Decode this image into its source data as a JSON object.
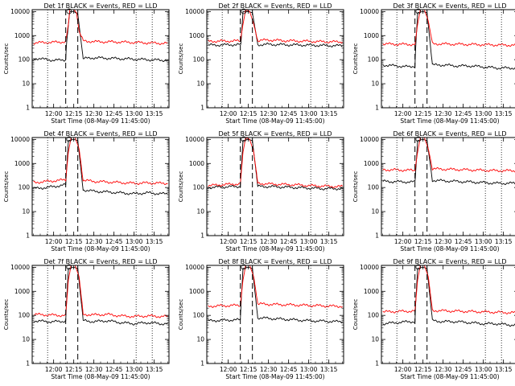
{
  "x_ticks": [
    "12:00",
    "12:15",
    "12:30",
    "12:45",
    "13:00",
    "13:15"
  ],
  "x_tick_minutes": [
    15,
    30,
    45,
    60,
    75,
    90
  ],
  "y_ticks": [
    "1",
    "10",
    "100",
    "1000",
    "10000"
  ],
  "y_tick_values": [
    1,
    10,
    100,
    1000,
    10000
  ],
  "ylabel": "Counts/sec",
  "xlabel": "Start Time (08-May-09 11:45:00)",
  "colors": {
    "events": "#000000",
    "lld": "#ff0000",
    "axes": "#000000"
  },
  "chart_data": [
    {
      "type": "line",
      "title": "Det 1f BLACK = Events, RED = LLD",
      "x_unit": "minutes after 11:45:00",
      "xlim": [
        -1,
        101
      ],
      "ylim": [
        1,
        12000
      ],
      "yscale": "log",
      "vlines_dotted": [
        10.5,
        76.5,
        88.5
      ],
      "vlines_dashed": [
        24,
        33
      ],
      "series": [
        {
          "name": "BLACK = Events",
          "x": [
            0,
            5,
            10,
            15,
            20,
            24,
            24.5,
            27,
            30,
            33,
            37,
            45,
            55,
            65,
            75,
            85,
            95,
            100
          ],
          "values": [
            115,
            110,
            100,
            95,
            95,
            100,
            400,
            10000,
            10000,
            8000,
            110,
            120,
            115,
            110,
            105,
            100,
            95,
            95
          ]
        },
        {
          "name": "RED = LLD",
          "x": [
            0,
            10,
            20,
            24,
            26,
            27,
            30,
            32,
            34,
            37,
            45,
            55,
            65,
            75,
            85,
            95,
            100
          ],
          "values": [
            500,
            520,
            540,
            560,
            3000,
            12000,
            12000,
            9000,
            1500,
            600,
            560,
            550,
            540,
            520,
            500,
            480,
            480
          ]
        }
      ]
    },
    {
      "type": "line",
      "title": "Det 2f BLACK = Events, RED = LLD",
      "x_unit": "minutes after 11:45:00",
      "xlim": [
        -1,
        101
      ],
      "ylim": [
        1,
        12000
      ],
      "yscale": "log",
      "vlines_dotted": [
        10.5,
        76.5,
        88.5
      ],
      "vlines_dashed": [
        24,
        33
      ],
      "series": [
        {
          "name": "BLACK = Events",
          "x": [
            0,
            10,
            20,
            24,
            24.5,
            26,
            30,
            33,
            37,
            45,
            55,
            65,
            75,
            85,
            95,
            100
          ],
          "values": [
            400,
            410,
            420,
            420,
            500,
            10000,
            10000,
            9000,
            420,
            430,
            420,
            410,
            400,
            390,
            380,
            380
          ]
        },
        {
          "name": "RED = LLD",
          "x": [
            0,
            10,
            20,
            24,
            26,
            28,
            31,
            34,
            37,
            45,
            55,
            65,
            75,
            85,
            95,
            100
          ],
          "values": [
            580,
            590,
            600,
            600,
            3000,
            12000,
            10000,
            3000,
            620,
            660,
            620,
            600,
            580,
            560,
            550,
            550
          ]
        }
      ]
    },
    {
      "type": "line",
      "title": "Det 3f BLACK = Events, RED = LLD",
      "x_unit": "minutes after 11:45:00",
      "xlim": [
        -1,
        101
      ],
      "ylim": [
        1,
        12000
      ],
      "yscale": "log",
      "vlines_dotted": [
        10.5,
        76.5,
        88.5
      ],
      "vlines_dashed": [
        24,
        33
      ],
      "series": [
        {
          "name": "BLACK = Events",
          "x": [
            0,
            10,
            20,
            24,
            24.5,
            26,
            30,
            33,
            37,
            45,
            55,
            65,
            75,
            85,
            95,
            100
          ],
          "values": [
            60,
            55,
            50,
            55,
            300,
            9000,
            10000,
            9000,
            60,
            60,
            55,
            55,
            50,
            45,
            45,
            45
          ]
        },
        {
          "name": "RED = LLD",
          "x": [
            0,
            10,
            20,
            24,
            26,
            28,
            31,
            34,
            37,
            45,
            55,
            65,
            75,
            85,
            95,
            100
          ],
          "values": [
            450,
            440,
            430,
            430,
            3000,
            12000,
            12000,
            4000,
            460,
            450,
            440,
            430,
            420,
            410,
            400,
            400
          ]
        }
      ]
    },
    {
      "type": "line",
      "title": "Det 4f BLACK = Events, RED = LLD",
      "x_unit": "minutes after 11:45:00",
      "xlim": [
        -1,
        101
      ],
      "ylim": [
        1,
        12000
      ],
      "yscale": "log",
      "vlines_dotted": [
        10.5,
        76.5,
        88.5
      ],
      "vlines_dashed": [
        24,
        33
      ],
      "series": [
        {
          "name": "BLACK = Events",
          "x": [
            0,
            5,
            10,
            15,
            20,
            24,
            24.5,
            26,
            30,
            33,
            37,
            45,
            55,
            65,
            75,
            85,
            95,
            100
          ],
          "values": [
            90,
            95,
            100,
            110,
            120,
            130,
            400,
            9000,
            10000,
            9000,
            80,
            70,
            65,
            60,
            55,
            60,
            55,
            55
          ]
        },
        {
          "name": "RED = LLD",
          "x": [
            0,
            5,
            10,
            15,
            20,
            24,
            26,
            28,
            31,
            34,
            37,
            45,
            55,
            65,
            75,
            85,
            95,
            100
          ],
          "values": [
            160,
            170,
            180,
            190,
            200,
            210,
            3000,
            12000,
            12000,
            4000,
            200,
            180,
            170,
            160,
            150,
            155,
            150,
            150
          ]
        }
      ]
    },
    {
      "type": "line",
      "title": "Det 5f BLACK = Events, RED = LLD",
      "x_unit": "minutes after 11:45:00",
      "xlim": [
        -1,
        101
      ],
      "ylim": [
        1,
        12000
      ],
      "yscale": "log",
      "vlines_dotted": [
        10.5,
        76.5,
        88.5
      ],
      "vlines_dashed": [
        24,
        33
      ],
      "series": [
        {
          "name": "BLACK = Events",
          "x": [
            0,
            10,
            20,
            24,
            24.5,
            26,
            30,
            33,
            37,
            45,
            55,
            65,
            75,
            85,
            95,
            100
          ],
          "values": [
            100,
            105,
            110,
            110,
            400,
            9000,
            10000,
            9000,
            110,
            110,
            105,
            100,
            95,
            90,
            90,
            90
          ]
        },
        {
          "name": "RED = LLD",
          "x": [
            0,
            10,
            20,
            24,
            26,
            28,
            31,
            34,
            37,
            45,
            55,
            65,
            75,
            85,
            95,
            100
          ],
          "values": [
            120,
            130,
            140,
            140,
            3000,
            12000,
            10000,
            3000,
            150,
            140,
            135,
            130,
            120,
            115,
            110,
            110
          ]
        }
      ]
    },
    {
      "type": "line",
      "title": "Det 6f BLACK = Events, RED = LLD",
      "x_unit": "minutes after 11:45:00",
      "xlim": [
        -1,
        101
      ],
      "ylim": [
        1,
        12000
      ],
      "yscale": "log",
      "vlines_dotted": [
        10.5,
        76.5,
        88.5
      ],
      "vlines_dashed": [
        24,
        33
      ],
      "series": [
        {
          "name": "BLACK = Events",
          "x": [
            0,
            10,
            20,
            24,
            24.5,
            26,
            30,
            33,
            37,
            45,
            55,
            65,
            75,
            85,
            95,
            100
          ],
          "values": [
            180,
            175,
            170,
            170,
            400,
            9000,
            10000,
            9000,
            200,
            190,
            180,
            170,
            160,
            150,
            150,
            150
          ]
        },
        {
          "name": "RED = LLD",
          "x": [
            0,
            10,
            20,
            24,
            26,
            28,
            31,
            34,
            37,
            45,
            55,
            65,
            75,
            85,
            95,
            100
          ],
          "values": [
            550,
            540,
            520,
            520,
            3000,
            12000,
            12000,
            4000,
            600,
            580,
            560,
            540,
            520,
            500,
            500,
            500
          ]
        }
      ]
    },
    {
      "type": "line",
      "title": "Det 7f BLACK = Events, RED = LLD",
      "x_unit": "minutes after 11:45:00",
      "xlim": [
        -1,
        101
      ],
      "ylim": [
        1,
        12000
      ],
      "yscale": "log",
      "vlines_dotted": [
        10.5,
        76.5,
        88.5
      ],
      "vlines_dashed": [
        24,
        33
      ],
      "series": [
        {
          "name": "BLACK = Events",
          "x": [
            0,
            10,
            20,
            24,
            24.5,
            26,
            30,
            33,
            37,
            45,
            55,
            65,
            75,
            85,
            95,
            100
          ],
          "values": [
            60,
            55,
            55,
            60,
            300,
            9000,
            10000,
            9000,
            60,
            55,
            60,
            50,
            45,
            50,
            45,
            45
          ]
        },
        {
          "name": "RED = LLD",
          "x": [
            0,
            10,
            20,
            24,
            26,
            28,
            31,
            34,
            37,
            45,
            55,
            65,
            75,
            85,
            95,
            100
          ],
          "values": [
            110,
            105,
            100,
            100,
            3000,
            12000,
            12000,
            4000,
            110,
            105,
            110,
            95,
            90,
            95,
            90,
            90
          ]
        }
      ]
    },
    {
      "type": "line",
      "title": "Det 8f BLACK = Events, RED = LLD",
      "x_unit": "minutes after 11:45:00",
      "xlim": [
        -1,
        101
      ],
      "ylim": [
        1,
        12000
      ],
      "yscale": "log",
      "vlines_dotted": [
        10.5,
        76.5,
        88.5
      ],
      "vlines_dashed": [
        24,
        33
      ],
      "series": [
        {
          "name": "BLACK = Events",
          "x": [
            0,
            10,
            20,
            24,
            24.5,
            26,
            30,
            33,
            37,
            45,
            55,
            65,
            75,
            85,
            95,
            100
          ],
          "values": [
            60,
            62,
            65,
            65,
            300,
            9000,
            10000,
            9000,
            80,
            75,
            70,
            65,
            60,
            58,
            55,
            55
          ]
        },
        {
          "name": "RED = LLD",
          "x": [
            0,
            10,
            20,
            24,
            26,
            28,
            31,
            34,
            37,
            45,
            55,
            65,
            75,
            85,
            95,
            100
          ],
          "values": [
            240,
            250,
            260,
            260,
            3000,
            12000,
            12000,
            4000,
            300,
            290,
            280,
            270,
            260,
            250,
            240,
            240
          ]
        }
      ]
    },
    {
      "type": "line",
      "title": "Det 9f BLACK = Events, RED = LLD",
      "x_unit": "minutes after 11:45:00",
      "xlim": [
        -1,
        101
      ],
      "ylim": [
        1,
        12000
      ],
      "yscale": "log",
      "vlines_dotted": [
        10.5,
        76.5,
        88.5
      ],
      "vlines_dashed": [
        24,
        33
      ],
      "series": [
        {
          "name": "BLACK = Events",
          "x": [
            0,
            10,
            20,
            24,
            24.5,
            26,
            30,
            33,
            37,
            45,
            55,
            65,
            75,
            85,
            95,
            100
          ],
          "values": [
            45,
            50,
            55,
            55,
            300,
            9000,
            10000,
            9000,
            60,
            55,
            55,
            50,
            45,
            45,
            40,
            40
          ]
        },
        {
          "name": "RED = LLD",
          "x": [
            0,
            10,
            20,
            24,
            26,
            28,
            31,
            34,
            37,
            45,
            55,
            65,
            75,
            85,
            95,
            100
          ],
          "values": [
            140,
            145,
            150,
            150,
            3000,
            12000,
            12000,
            4000,
            160,
            155,
            150,
            145,
            140,
            135,
            130,
            130
          ]
        }
      ]
    }
  ]
}
